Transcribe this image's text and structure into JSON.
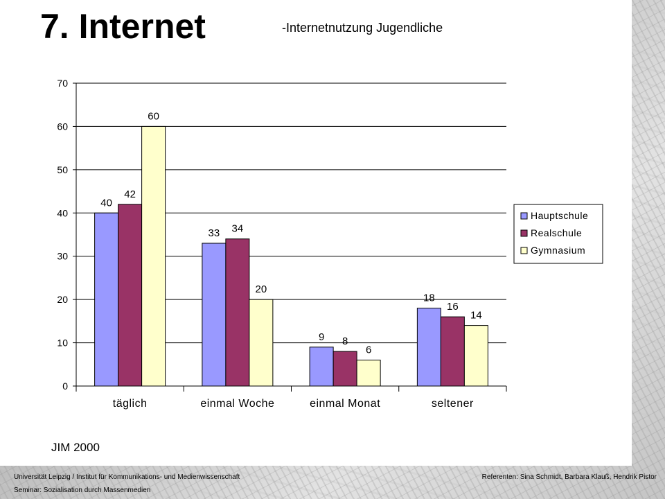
{
  "slide": {
    "title": "7. Internet",
    "subtitle": "-Internetnutzung Jugendliche",
    "source": "JIM 2000"
  },
  "footer": {
    "left": "Universität Leipzig / Institut für Kommunikations- und Medienwissenschaft",
    "right": "Referenten: Sina Schmidt, Barbara Klauß, Hendrik Pistor",
    "left2": "Seminar: Sozialisation durch Massenmedien"
  },
  "chart_data": {
    "type": "bar",
    "title": "",
    "xlabel": "",
    "ylabel": "",
    "ylim": [
      0,
      70
    ],
    "yticks": [
      0,
      10,
      20,
      30,
      40,
      50,
      60,
      70
    ],
    "grid": true,
    "legend_position": "right",
    "categories": [
      "täglich",
      "einmal Woche",
      "einmal Monat",
      "seltener"
    ],
    "series": [
      {
        "name": "Hauptschule",
        "color": "#9999ff",
        "values": [
          40,
          33,
          9,
          18
        ]
      },
      {
        "name": "Realschule",
        "color": "#993366",
        "values": [
          42,
          34,
          8,
          16
        ]
      },
      {
        "name": "Gymnasium",
        "color": "#ffffcc",
        "values": [
          60,
          20,
          6,
          14
        ]
      }
    ]
  }
}
